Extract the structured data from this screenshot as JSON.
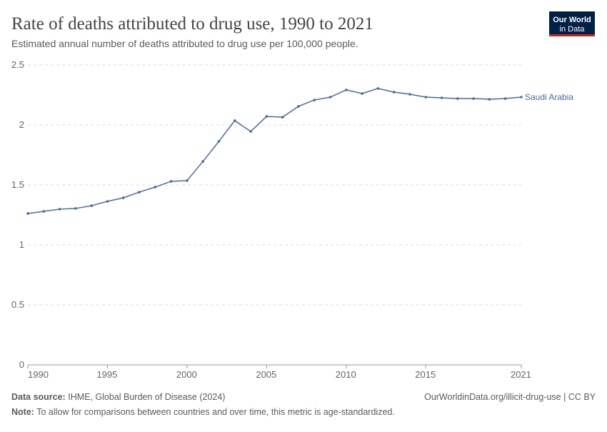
{
  "chart_data": {
    "type": "line",
    "title": "Rate of deaths attributed to drug use, 1990 to 2021",
    "subtitle": "Estimated annual number of deaths attributed to drug use per 100,000 people.",
    "x": [
      1990,
      1991,
      1992,
      1993,
      1994,
      1995,
      1996,
      1997,
      1998,
      1999,
      2000,
      2001,
      2002,
      2003,
      2004,
      2005,
      2006,
      2007,
      2008,
      2009,
      2010,
      2011,
      2012,
      2013,
      2014,
      2015,
      2016,
      2017,
      2018,
      2019,
      2020,
      2021
    ],
    "series": [
      {
        "name": "Saudi Arabia",
        "color": "#4c6a9c",
        "values": [
          1.262,
          1.28,
          1.298,
          1.304,
          1.327,
          1.363,
          1.393,
          1.44,
          1.482,
          1.53,
          1.536,
          1.696,
          1.863,
          2.036,
          1.946,
          2.071,
          2.065,
          2.155,
          2.208,
          2.232,
          2.292,
          2.262,
          2.304,
          2.274,
          2.256,
          2.232,
          2.226,
          2.22,
          2.22,
          2.214,
          2.22,
          2.232
        ]
      }
    ],
    "xlim": [
      1990,
      2021
    ],
    "xticks": [
      1990,
      1995,
      2000,
      2005,
      2010,
      2015,
      2021
    ],
    "ylim": [
      0,
      2.5
    ],
    "yticks": [
      0,
      0.5,
      1,
      1.5,
      2,
      2.5
    ],
    "grid": true,
    "source_label": "Data source:",
    "source": "IHME, Global Burden of Disease (2024)",
    "url": "OurWorldinData.org/illicit-drug-use | CC BY",
    "note_label": "Note:",
    "note": "To allow for comparisons between countries and over time, this metric is age-standardized.",
    "logo": [
      "Our World",
      "in Data"
    ]
  }
}
